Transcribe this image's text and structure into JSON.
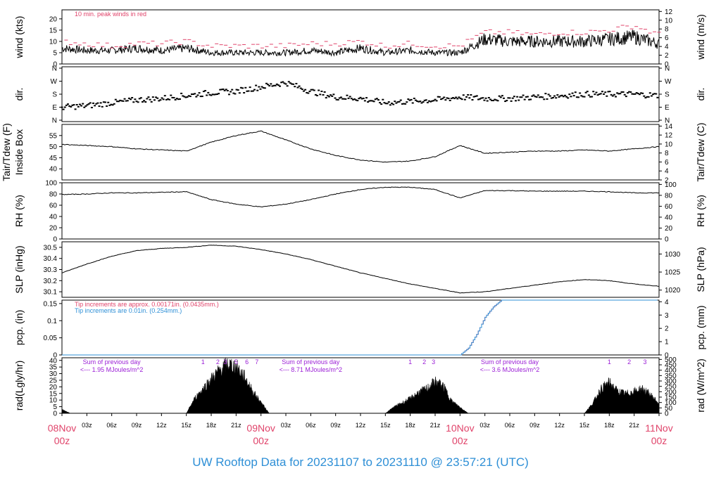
{
  "footer": {
    "prefix": "UW Rooftop Data for",
    "start": "20231107",
    "to": "to",
    "end": "20231110",
    "at": "@",
    "time": "23:57:21",
    "zone": "(UTC)"
  },
  "colors": {
    "red": "#e0436a",
    "blue": "#2e8fd6",
    "purple": "#9b1fd6",
    "trace": "#000000"
  },
  "chart_data": [
    {
      "type": "line",
      "ylabel": "wind (kts)",
      "ylabel_right": "wind (m/s)",
      "ylim": [
        0,
        24
      ],
      "yticks": [
        0,
        5,
        10,
        15,
        20
      ],
      "yticks_right": [
        "0",
        "2",
        "4",
        "6",
        "8",
        "10",
        "12"
      ],
      "annotation": "10 min. peak winds in red",
      "x_hours": [
        0,
        3,
        6,
        9,
        12,
        15,
        18,
        21,
        24,
        27,
        30,
        33,
        36,
        39,
        42,
        45,
        48,
        51,
        54,
        57,
        60,
        63,
        66,
        69,
        72
      ],
      "series": [
        {
          "values": [
            7,
            6,
            6,
            7,
            6,
            7,
            5,
            5,
            5,
            5,
            6,
            5,
            7,
            5,
            6,
            5,
            5,
            11,
            10,
            10,
            10,
            10,
            11,
            12,
            9
          ]
        },
        {
          "values": [
            10,
            9,
            8,
            9,
            9,
            10,
            8,
            8,
            8,
            8,
            9,
            9,
            10,
            8,
            9,
            8,
            8,
            14,
            14,
            13,
            14,
            14,
            15,
            17,
            13
          ]
        }
      ]
    },
    {
      "type": "scatter",
      "ylabel": "dir.",
      "ylabel_right": "dir.",
      "yticks": [
        "N",
        "E",
        "S",
        "W",
        "N"
      ],
      "x_hours": [
        0,
        3,
        6,
        9,
        12,
        15,
        18,
        21,
        24,
        27,
        30,
        33,
        36,
        39,
        42,
        45,
        48,
        51,
        54,
        57,
        60,
        63,
        66,
        69,
        72
      ],
      "series": [
        {
          "values": [
            90,
            100,
            120,
            140,
            150,
            170,
            190,
            200,
            230,
            260,
            200,
            160,
            150,
            120,
            130,
            140,
            160,
            150,
            150,
            160,
            170,
            180,
            180,
            180,
            170
          ]
        }
      ]
    },
    {
      "type": "line",
      "ylabel": "Tair/Tdew (F)",
      "ylabel2": "Inside Box",
      "ylabel_right": "Tair/Tdew (C)",
      "ylim": [
        35,
        60
      ],
      "yticks": [
        40,
        45,
        50,
        55
      ],
      "yticks_right": [
        "2",
        "4",
        "6",
        "8",
        "10",
        "12",
        "14"
      ],
      "x_hours": [
        0,
        3,
        6,
        9,
        12,
        15,
        18,
        21,
        24,
        27,
        30,
        33,
        36,
        39,
        42,
        45,
        48,
        51,
        54,
        57,
        60,
        63,
        66,
        69,
        72
      ],
      "series": [
        {
          "values": [
            51,
            50.5,
            50,
            49,
            48.5,
            48,
            52,
            55,
            57,
            53,
            49,
            46,
            44,
            43,
            43.5,
            45.5,
            50.5,
            47,
            47.5,
            48,
            48,
            48.5,
            48,
            49,
            50
          ]
        }
      ]
    },
    {
      "type": "line",
      "ylabel": "RH (%)",
      "ylabel_right": "RH (%)",
      "ylim": [
        0,
        100
      ],
      "yticks": [
        0,
        20,
        40,
        60,
        80,
        100
      ],
      "yticks_right": [
        "0",
        "20",
        "40",
        "60",
        "80",
        "100"
      ],
      "x_hours": [
        0,
        3,
        6,
        9,
        12,
        15,
        18,
        21,
        24,
        27,
        30,
        33,
        36,
        39,
        42,
        45,
        48,
        51,
        54,
        57,
        60,
        63,
        66,
        69,
        72
      ],
      "series": [
        {
          "values": [
            79,
            80,
            82,
            82,
            83,
            84,
            70,
            62,
            57,
            62,
            70,
            80,
            88,
            92,
            92,
            88,
            73,
            86,
            86,
            85,
            85,
            85,
            84,
            82,
            82
          ]
        }
      ]
    },
    {
      "type": "line",
      "ylabel": "SLP (inHg)",
      "ylabel_right": "SLP (hPa)",
      "ylim": [
        30.05,
        30.55
      ],
      "yticks": [
        30.1,
        30.2,
        30.3,
        30.4,
        30.5
      ],
      "yticks_right": [
        "1020",
        "1025",
        "1030"
      ],
      "x_hours": [
        0,
        3,
        6,
        9,
        12,
        15,
        18,
        21,
        24,
        27,
        30,
        33,
        36,
        39,
        42,
        45,
        48,
        51,
        54,
        57,
        60,
        63,
        66,
        69,
        72
      ],
      "series": [
        {
          "values": [
            30.27,
            30.35,
            30.42,
            30.47,
            30.49,
            30.5,
            30.52,
            30.51,
            30.48,
            30.44,
            30.39,
            30.33,
            30.27,
            30.22,
            30.17,
            30.13,
            30.09,
            30.1,
            30.13,
            30.16,
            30.19,
            30.21,
            30.2,
            30.17,
            30.15
          ]
        }
      ]
    },
    {
      "type": "line",
      "ylabel": "pcp. (in)",
      "ylabel_right": "pcp. (mm)",
      "ylim": [
        0,
        0.16
      ],
      "yticks": [
        0,
        0.05,
        0.1,
        0.15
      ],
      "yticks_right": [
        "0",
        "1",
        "2",
        "3",
        "4"
      ],
      "annotations": [
        "Tip increments are approx. 0.00171in. (0.0435mm.)",
        "Tip increments are 0.01in. (0.254mm.)"
      ],
      "x_hours": [
        0,
        48,
        49,
        50,
        51,
        52,
        53,
        72
      ],
      "series": [
        {
          "name": "0.00171in. gauge",
          "values": [
            0,
            0,
            0.02,
            0.06,
            0.11,
            0.14,
            0.16,
            0.16
          ]
        },
        {
          "name": "0.01in. gauge",
          "values": [
            0,
            0,
            0.02,
            0.06,
            0.11,
            0.14,
            0.16,
            0.16
          ]
        }
      ]
    },
    {
      "type": "area",
      "ylabel": "rad(Lgly/hr)",
      "ylabel_right": "rad (W/m^2)",
      "ylim": [
        0,
        42
      ],
      "yticks": [
        0,
        5,
        10,
        15,
        20,
        25,
        30,
        35,
        40
      ],
      "yticks_right": [
        "0",
        "50",
        "100",
        "150",
        "200",
        "250",
        "300",
        "350",
        "400",
        "450",
        "500"
      ],
      "x_hours": [
        0,
        1,
        15,
        16,
        18,
        19,
        20,
        21,
        22,
        23,
        25,
        39,
        40,
        42,
        43,
        44,
        45,
        46,
        47,
        49,
        63,
        64,
        65,
        66,
        67,
        68,
        69,
        70,
        71,
        72
      ],
      "series": [
        {
          "values": [
            3,
            0,
            0,
            12,
            28,
            35,
            40,
            38,
            30,
            18,
            0,
            0,
            5,
            12,
            17,
            20,
            26,
            22,
            10,
            0,
            0,
            8,
            20,
            25,
            18,
            16,
            18,
            20,
            15,
            8
          ]
        }
      ],
      "annotations": [
        {
          "line1": "Sum of previous day",
          "line2": "<--- 1.95 MJoules/m^2"
        },
        {
          "line1": "Sum of previous day",
          "line2": "<--- 8.71 MJoules/m^2"
        },
        {
          "line1": "Sum of previous day",
          "line2": "<--- 3.6 MJoules/m^2"
        }
      ],
      "markers_day1": [
        "1",
        "2",
        "3",
        "5",
        "6",
        "7"
      ],
      "markers_day2": [
        "1",
        "2",
        "3"
      ],
      "markers_day3": [
        "1",
        "2",
        "3"
      ]
    }
  ],
  "xaxis": {
    "minor_labels": [
      "03z",
      "06z",
      "09z",
      "12z",
      "15z",
      "18z",
      "21z",
      "03z",
      "06z",
      "09z",
      "12z",
      "15z",
      "18z",
      "21z",
      "03z",
      "06z",
      "09z",
      "12z",
      "15z",
      "18z",
      "21z"
    ],
    "major_labels": [
      {
        "day": "08Nov",
        "z": "00z"
      },
      {
        "day": "09Nov",
        "z": "00z"
      },
      {
        "day": "10Nov",
        "z": "00z"
      },
      {
        "day": "11Nov",
        "z": "00z"
      }
    ]
  }
}
